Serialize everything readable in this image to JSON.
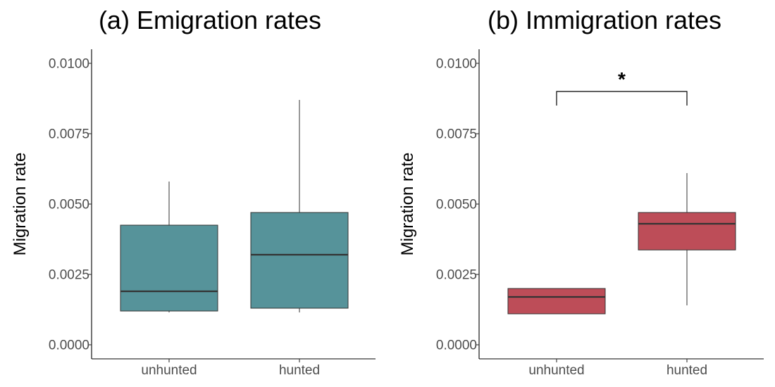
{
  "chart_data": [
    {
      "type": "box",
      "title": "(a) Emigration rates",
      "xlabel": "",
      "ylabel": "Migration rate",
      "categories": [
        "unhunted",
        "hunted"
      ],
      "ylim": [
        -0.0005,
        0.0105
      ],
      "yticks": [
        "0.0000",
        "0.0025",
        "0.0050",
        "0.0075",
        "0.0100"
      ],
      "ytick_values": [
        0,
        0.0025,
        0.005,
        0.0075,
        0.01
      ],
      "fill_color": "#56939a",
      "boxes": [
        {
          "category": "unhunted",
          "min": 0.00115,
          "q1": 0.0012,
          "median": 0.0019,
          "q3": 0.00425,
          "max": 0.0058
        },
        {
          "category": "hunted",
          "min": 0.00115,
          "q1": 0.0013,
          "median": 0.0032,
          "q3": 0.0047,
          "max": 0.0087
        }
      ],
      "grid": false
    },
    {
      "type": "box",
      "title": "(b) Immigration rates",
      "xlabel": "",
      "ylabel": "Migration rate",
      "categories": [
        "unhunted",
        "hunted"
      ],
      "ylim": [
        -0.0005,
        0.0105
      ],
      "yticks": [
        "0.0000",
        "0.0025",
        "0.0050",
        "0.0075",
        "0.0100"
      ],
      "ytick_values": [
        0,
        0.0025,
        0.005,
        0.0075,
        0.01
      ],
      "fill_color": "#bd4d58",
      "boxes": [
        {
          "category": "unhunted",
          "min": 0.0011,
          "q1": 0.0011,
          "median": 0.0017,
          "q3": 0.002,
          "max": 0.002
        },
        {
          "category": "hunted",
          "min": 0.0014,
          "q1": 0.00337,
          "median": 0.0043,
          "q3": 0.0047,
          "max": 0.0061
        }
      ],
      "significance": {
        "label": "*",
        "from": "unhunted",
        "to": "hunted",
        "y_top": 0.009,
        "y_bottom": 0.0085
      },
      "grid": false
    }
  ]
}
